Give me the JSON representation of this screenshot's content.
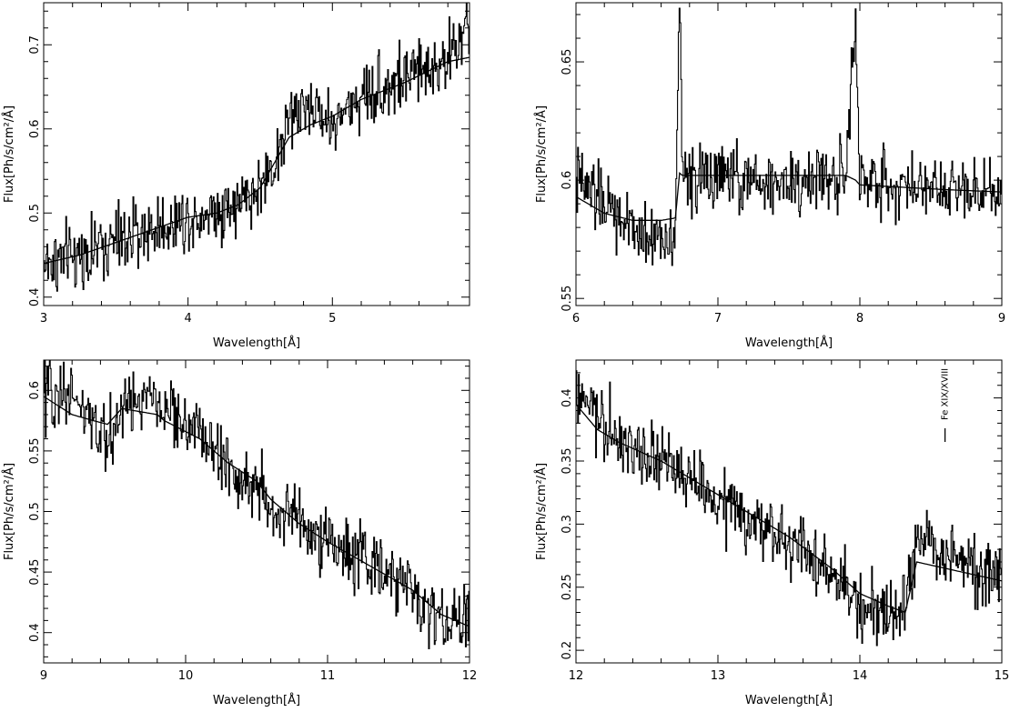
{
  "chart_data": [
    {
      "type": "line",
      "xlabel": "Wavelength[Å]",
      "ylabel": "Flux[Ph/s/cm²/Å]",
      "xlim": [
        3,
        5.95
      ],
      "ylim": [
        0.39,
        0.75
      ],
      "xticks": [
        3,
        4,
        5
      ],
      "yticks": [
        0.4,
        0.5,
        0.6,
        0.7
      ],
      "xtick_labels": [
        "3",
        "4",
        "5"
      ],
      "ytick_labels": [
        "0.4",
        "0.5",
        "0.6",
        "0.7"
      ],
      "grid": false,
      "series": [
        {
          "role": "observed spectrum (histogram)",
          "x": [
            3.0,
            3.25,
            3.5,
            3.75,
            4.0,
            4.2,
            4.35,
            4.5,
            4.6,
            4.7,
            4.85,
            5.0,
            5.2,
            5.5,
            5.8,
            5.95
          ],
          "values": [
            0.44,
            0.45,
            0.465,
            0.48,
            0.495,
            0.505,
            0.51,
            0.53,
            0.56,
            0.61,
            0.63,
            0.605,
            0.64,
            0.66,
            0.685,
            0.72
          ]
        },
        {
          "role": "model",
          "x": [
            3.0,
            3.25,
            3.5,
            3.75,
            4.0,
            4.2,
            4.35,
            4.5,
            4.6,
            4.7,
            4.85,
            5.0,
            5.2,
            5.5,
            5.8,
            5.95
          ],
          "values": [
            0.44,
            0.45,
            0.465,
            0.48,
            0.495,
            0.5,
            0.51,
            0.53,
            0.56,
            0.59,
            0.605,
            0.615,
            0.635,
            0.655,
            0.68,
            0.685
          ]
        }
      ]
    },
    {
      "type": "line",
      "xlabel": "Wavelength[Å]",
      "ylabel": "Flux[Ph/s/cm²/Å]",
      "xlim": [
        6,
        9
      ],
      "ylim": [
        0.547,
        0.675
      ],
      "xticks": [
        6,
        7,
        8,
        9
      ],
      "yticks": [
        0.55,
        0.6,
        0.65
      ],
      "xtick_labels": [
        "6",
        "7",
        "8",
        "9"
      ],
      "ytick_labels": [
        "0.55",
        "0.6",
        "0.65"
      ],
      "grid": false,
      "series": [
        {
          "role": "observed spectrum (histogram)",
          "x": [
            6.0,
            6.2,
            6.4,
            6.6,
            6.7,
            6.73,
            6.75,
            6.8,
            7.0,
            7.3,
            7.6,
            7.9,
            7.97,
            8.0,
            8.3,
            8.6,
            9.0
          ],
          "values": [
            0.6,
            0.59,
            0.578,
            0.575,
            0.58,
            0.675,
            0.605,
            0.6,
            0.602,
            0.598,
            0.6,
            0.602,
            0.665,
            0.6,
            0.598,
            0.598,
            0.597
          ]
        },
        {
          "role": "model",
          "x": [
            6.0,
            6.2,
            6.4,
            6.6,
            6.7,
            6.73,
            6.75,
            6.8,
            7.0,
            7.3,
            7.6,
            7.9,
            7.97,
            8.0,
            8.3,
            8.6,
            9.0
          ],
          "values": [
            0.593,
            0.586,
            0.583,
            0.583,
            0.584,
            0.603,
            0.602,
            0.602,
            0.602,
            0.602,
            0.602,
            0.602,
            0.6,
            0.598,
            0.597,
            0.596,
            0.595
          ]
        }
      ]
    },
    {
      "type": "line",
      "xlabel": "Wavelength[Å]",
      "ylabel": "Flux[Ph/s/cm²/Å]",
      "xlim": [
        9,
        12
      ],
      "ylim": [
        0.375,
        0.625
      ],
      "xticks": [
        9,
        10,
        11,
        12
      ],
      "yticks": [
        0.4,
        0.45,
        0.5,
        0.55,
        0.6
      ],
      "xtick_labels": [
        "9",
        "10",
        "11",
        "12"
      ],
      "ytick_labels": [
        "0.4",
        "0.45",
        "0.5",
        "0.55",
        "0.6"
      ],
      "grid": false,
      "series": [
        {
          "role": "observed spectrum (histogram)",
          "x": [
            9.0,
            9.2,
            9.35,
            9.45,
            9.55,
            9.8,
            9.85,
            10.1,
            10.3,
            10.5,
            10.6,
            10.8,
            11.0,
            11.3,
            11.6,
            11.8,
            12.0
          ],
          "values": [
            0.595,
            0.6,
            0.57,
            0.555,
            0.59,
            0.59,
            0.585,
            0.565,
            0.535,
            0.52,
            0.5,
            0.495,
            0.475,
            0.455,
            0.435,
            0.41,
            0.405
          ]
        },
        {
          "role": "model",
          "x": [
            9.0,
            9.2,
            9.35,
            9.45,
            9.55,
            9.8,
            9.85,
            10.1,
            10.3,
            10.5,
            10.6,
            10.8,
            11.0,
            11.3,
            11.6,
            11.8,
            12.0
          ],
          "values": [
            0.595,
            0.58,
            0.575,
            0.572,
            0.585,
            0.58,
            0.575,
            0.56,
            0.54,
            0.525,
            0.51,
            0.49,
            0.475,
            0.455,
            0.435,
            0.415,
            0.405
          ]
        }
      ]
    },
    {
      "type": "line",
      "xlabel": "Wavelength[Å]",
      "ylabel": "Flux[Ph/s/cm²/Å]",
      "xlim": [
        12,
        15
      ],
      "ylim": [
        0.19,
        0.43
      ],
      "xticks": [
        12,
        13,
        14,
        15
      ],
      "yticks": [
        0.2,
        0.25,
        0.3,
        0.35,
        0.4
      ],
      "xtick_labels": [
        "12",
        "13",
        "14",
        "15"
      ],
      "ytick_labels": [
        "0.2",
        "0.25",
        "0.3",
        "0.35",
        "0.4"
      ],
      "grid": false,
      "annotations": [
        {
          "text": "Fe XIX/XVIII",
          "x": 14.6
        }
      ],
      "series": [
        {
          "role": "observed spectrum (histogram)",
          "x": [
            12.0,
            12.15,
            12.3,
            12.6,
            12.9,
            13.2,
            13.5,
            13.8,
            14.0,
            14.2,
            14.32,
            14.4,
            14.6,
            14.8,
            15.0
          ],
          "values": [
            0.4,
            0.385,
            0.365,
            0.35,
            0.325,
            0.305,
            0.285,
            0.26,
            0.235,
            0.23,
            0.235,
            0.285,
            0.275,
            0.265,
            0.255
          ]
        },
        {
          "role": "model",
          "x": [
            12.0,
            12.15,
            12.3,
            12.6,
            12.9,
            13.2,
            13.5,
            13.8,
            14.0,
            14.2,
            14.32,
            14.4,
            14.6,
            14.8,
            15.0
          ],
          "values": [
            0.395,
            0.375,
            0.365,
            0.35,
            0.33,
            0.31,
            0.29,
            0.265,
            0.245,
            0.235,
            0.23,
            0.27,
            0.265,
            0.26,
            0.255
          ]
        }
      ]
    }
  ]
}
